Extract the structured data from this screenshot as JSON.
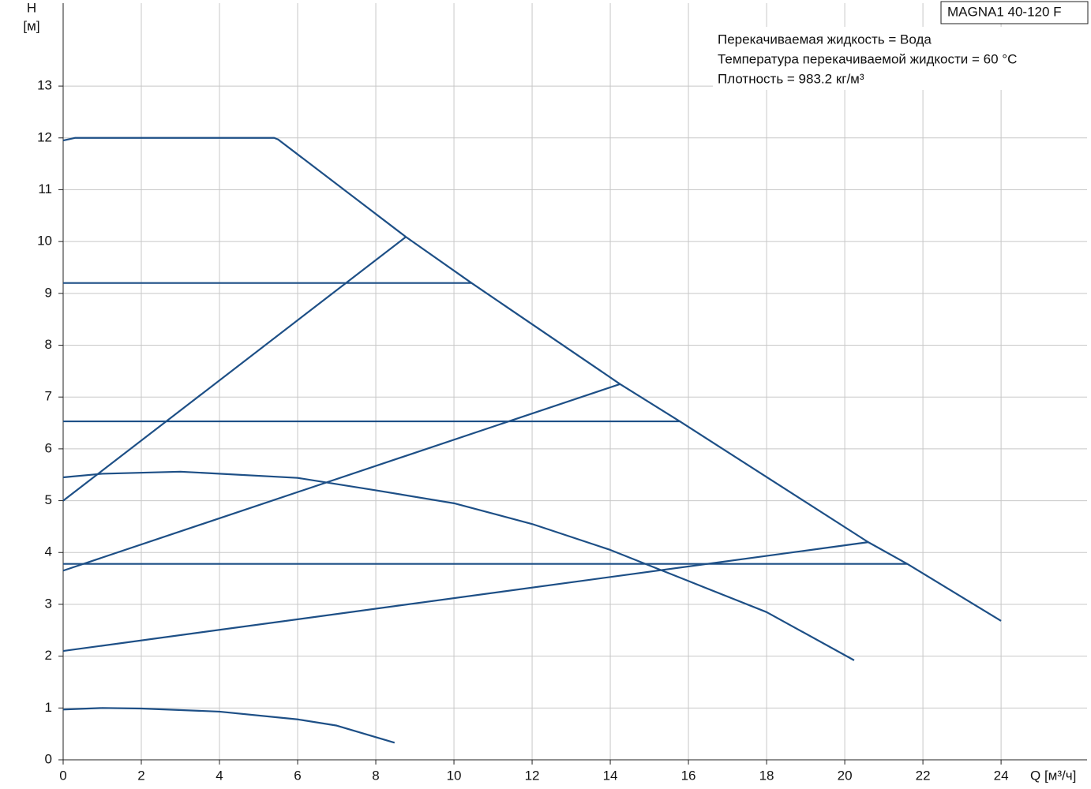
{
  "chart_data": {
    "type": "line",
    "title": "MAGNA1 40-120 F",
    "annotations": [
      "Перекачиваемая жидкость = Вода",
      "Температура перекачиваемой жидкости = 60 °C",
      "Плотность = 983.2 кг/м³"
    ],
    "y_label": "H",
    "y_unit": "[м]",
    "x_label": "Q [м³/ч]",
    "xlim": [
      0,
      26.2
    ],
    "ylim": [
      0,
      14.6
    ],
    "xticks": [
      0,
      2,
      4,
      6,
      8,
      10,
      12,
      14,
      16,
      18,
      20,
      22,
      24
    ],
    "yticks": [
      0,
      1,
      2,
      3,
      4,
      5,
      6,
      7,
      8,
      9,
      10,
      11,
      12,
      13
    ],
    "grid": true,
    "series": [
      {
        "color": "#1d4f86",
        "x": [
          0,
          0.3,
          5.4,
          5.5,
          8.77,
          10.45,
          14.25,
          15.8,
          20.6,
          21.6,
          24
        ],
        "values": [
          11.95,
          12,
          12,
          11.97,
          10.09,
          9.2,
          7.25,
          6.52,
          4.2,
          3.78,
          2.68
        ]
      },
      {
        "color": "#1d4f86",
        "x": [
          0,
          10.45
        ],
        "values": [
          9.2,
          9.2
        ]
      },
      {
        "color": "#1d4f86",
        "x": [
          0,
          15.8
        ],
        "values": [
          6.53,
          6.53
        ]
      },
      {
        "color": "#1d4f86",
        "x": [
          0,
          21.6
        ],
        "values": [
          3.78,
          3.78
        ]
      },
      {
        "color": "#1d4f86",
        "x": [
          0,
          8.77
        ],
        "values": [
          5.0,
          10.09
        ]
      },
      {
        "color": "#1d4f86",
        "x": [
          0,
          14.25
        ],
        "values": [
          3.65,
          7.25
        ]
      },
      {
        "color": "#1d4f86",
        "x": [
          0,
          20.6
        ],
        "values": [
          2.1,
          4.2
        ]
      },
      {
        "color": "#1d4f86",
        "x": [
          0,
          1,
          3,
          6,
          8,
          10,
          12,
          14,
          16,
          18,
          20.24
        ],
        "values": [
          5.45,
          5.52,
          5.56,
          5.44,
          5.2,
          4.95,
          4.55,
          4.05,
          3.45,
          2.85,
          1.92
        ]
      },
      {
        "color": "#1d4f86",
        "x": [
          0,
          1,
          2,
          4,
          6,
          7,
          8.48
        ],
        "values": [
          0.97,
          1.0,
          0.99,
          0.93,
          0.78,
          0.66,
          0.33
        ]
      }
    ]
  }
}
